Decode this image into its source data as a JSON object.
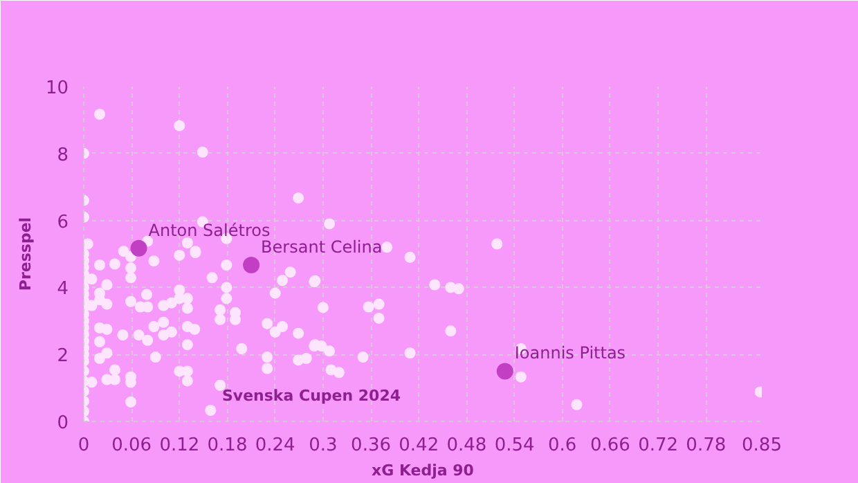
{
  "chart_data": {
    "type": "scatter",
    "xlabel": "xG Kedja 90",
    "ylabel": "Presspel",
    "xlim": [
      0,
      0.85
    ],
    "ylim": [
      0,
      10
    ],
    "xticks": [
      0,
      0.06,
      0.12,
      0.18,
      0.24,
      0.3,
      0.36,
      0.42,
      0.48,
      0.54,
      0.6,
      0.66,
      0.72,
      0.78,
      0.85
    ],
    "yticks": [
      0,
      2,
      4,
      6,
      8,
      10
    ],
    "grid": true,
    "marker": "circle",
    "annotations": [
      "Svenska Cupen 2024",
      {
        "text": "Anton Salétros",
        "x": 0.069,
        "y": 5.17
      },
      {
        "text": "Bersant Celina",
        "x": 0.21,
        "y": 4.67
      },
      {
        "text": "Ioannis Pittas",
        "x": 0.528,
        "y": 1.5
      }
    ],
    "series": [
      {
        "color": "#fde6fd",
        "x": [
          0.02,
          0.12,
          0.149,
          0.269,
          0,
          0,
          0,
          0.149,
          0.179,
          0.308,
          0.38,
          0.409,
          0.518,
          0.44,
          0.46,
          0.47,
          0.357,
          0.37,
          0.37,
          0.46,
          0.298,
          0.308,
          0.35,
          0.409,
          0.548,
          0.548,
          0.618,
          0.848,
          0.29,
          0.3,
          0.29,
          0.31,
          0.32,
          0,
          0,
          0,
          0,
          0,
          0,
          0,
          0,
          0,
          0,
          0,
          0,
          0,
          0,
          0,
          0,
          0,
          0,
          0,
          0,
          0,
          0,
          0,
          0.02,
          0.039,
          0.059,
          0.059,
          0.088,
          0.12,
          0.14,
          0.161,
          0.179,
          0.179,
          0.179,
          0.23,
          0.24,
          0.249,
          0.259,
          0.269,
          0.249,
          0.24,
          0.289,
          0.289,
          0.269,
          0.279,
          0.23,
          0.23,
          0.198,
          0.19,
          0.19,
          0.171,
          0.171,
          0.171,
          0.159,
          0.12,
          0.13,
          0.13,
          0.12,
          0.13,
          0.13,
          0.13,
          0.13,
          0.139,
          0.11,
          0.1,
          0.11,
          0.12,
          0.1,
          0.088,
          0.09,
          0.1,
          0.08,
          0.079,
          0.071,
          0.08,
          0.059,
          0.069,
          0.049,
          0.059,
          0.059,
          0.059,
          0.039,
          0.029,
          0.039,
          0.02,
          0.02,
          0.02,
          0.029,
          0.029,
          0.02,
          0.02,
          0.029,
          0.01,
          0.029,
          0.01,
          0.01,
          0.005,
          0.05,
          0.059,
          0.08,
          0.13,
          0.14
        ],
        "values": [
          9.17,
          8.83,
          8.04,
          6.67,
          8.0,
          6.6,
          6.1,
          5.96,
          5.46,
          5.9,
          5.2,
          4.9,
          5.3,
          4.08,
          4.0,
          3.96,
          3.42,
          3.5,
          3.08,
          2.7,
          2.25,
          2.1,
          1.92,
          2.04,
          2.17,
          1.33,
          0.5,
          0.88,
          4.2,
          3.4,
          2.29,
          1.54,
          1.46,
          0,
          0.3,
          0.6,
          0.9,
          1.2,
          1.5,
          1.8,
          2.0,
          2.2,
          2.4,
          2.6,
          2.8,
          3.0,
          3.2,
          3.4,
          3.6,
          3.8,
          4.0,
          4.2,
          4.4,
          4.6,
          4.8,
          5.0,
          4.67,
          4.7,
          4.58,
          4.29,
          4.79,
          4.96,
          5.04,
          4.29,
          4.67,
          4.0,
          3.67,
          2.92,
          2.67,
          4.21,
          4.46,
          2.63,
          2.83,
          3.83,
          4.17,
          2.25,
          1.83,
          1.88,
          1.92,
          1.58,
          2.17,
          3.25,
          3.04,
          3.33,
          3.04,
          1.08,
          0.33,
          3.92,
          3.67,
          3.38,
          1.5,
          1.5,
          1.21,
          2.29,
          2.83,
          2.75,
          2.67,
          3.46,
          3.54,
          3.67,
          2.96,
          2.83,
          1.92,
          2.58,
          2.42,
          3.79,
          3.42,
          3.42,
          3.58,
          2.58,
          2.58,
          1.33,
          1.17,
          0.58,
          1.54,
          1.25,
          1.25,
          2.79,
          2.38,
          1.88,
          2.75,
          2.04,
          3.83,
          3.63,
          3.5,
          3.46,
          4.08,
          1.17,
          4.25,
          5.3,
          5.08,
          4.92,
          5.38,
          5.33,
          5.08
        ]
      },
      {
        "color": "#c23fc4",
        "x": [
          0.069,
          0.21,
          0.528
        ],
        "values": [
          5.17,
          4.67,
          1.5
        ]
      }
    ]
  }
}
